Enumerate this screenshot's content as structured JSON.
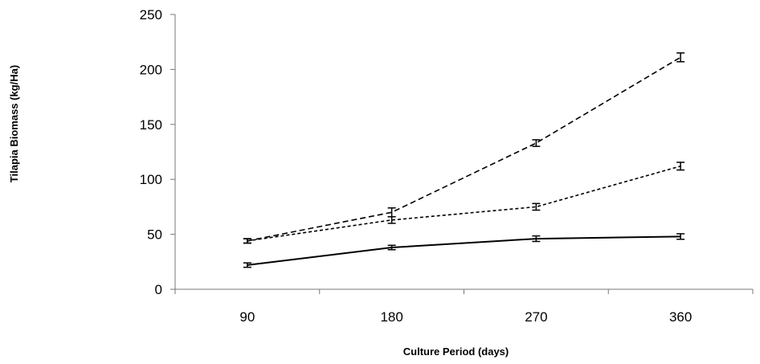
{
  "chart_data": {
    "type": "line",
    "xlabel": "Culture Period (days)",
    "ylabel": "Tilapia Biomass (kg/Ha)",
    "x": [
      90,
      180,
      270,
      360
    ],
    "x_tick_labels": [
      "90",
      "180",
      "270",
      "360"
    ],
    "y_ticks": [
      0,
      50,
      100,
      150,
      200,
      250
    ],
    "y_tick_labels": [
      "0",
      "50",
      "100",
      "150",
      "200",
      "250"
    ],
    "ylim": [
      0,
      250
    ],
    "grid": false,
    "series": [
      {
        "line_style": "solid",
        "values": [
          22,
          38,
          46,
          48
        ],
        "errors": [
          2,
          2,
          2.5,
          2.5
        ]
      },
      {
        "line_style": "short-dash",
        "values": [
          44,
          63,
          75,
          112
        ],
        "errors": [
          2,
          3,
          3,
          3.5
        ]
      },
      {
        "line_style": "long-dash",
        "values": [
          44,
          70,
          133,
          211
        ],
        "errors": [
          2,
          4,
          3,
          4
        ]
      }
    ],
    "colors": {
      "line": "#000000",
      "axis": "#777777"
    }
  }
}
